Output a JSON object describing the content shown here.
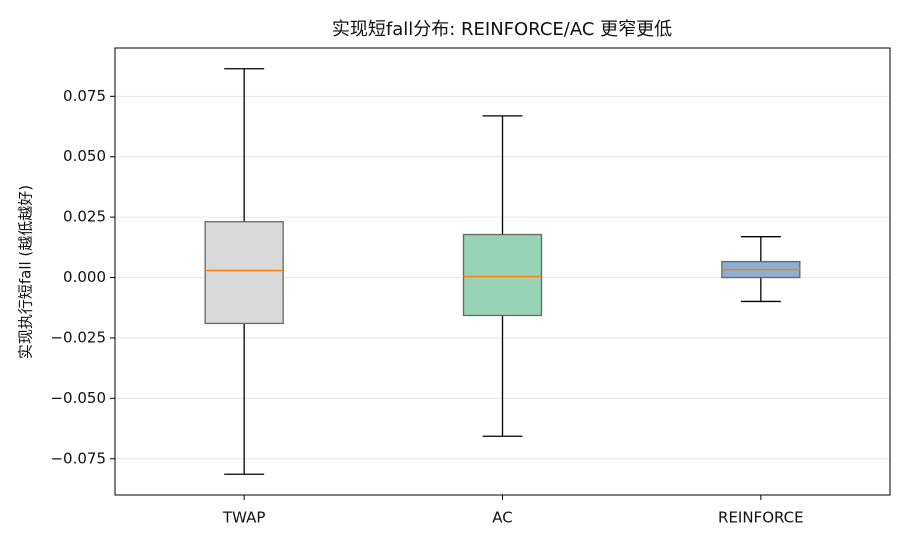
{
  "chart_data": {
    "type": "box",
    "title": "实现短fall分布: REINFORCE/AC 更窄更低",
    "y_label": "实现执行短fall (越低越好)",
    "categories": [
      "TWAP",
      "AC",
      "REINFORCE"
    ],
    "boxes": [
      {
        "low": -0.0814,
        "q1": -0.019,
        "median": 0.0029,
        "q3": 0.0231,
        "high": 0.0864,
        "color": "#d9d9d9"
      },
      {
        "low": -0.0657,
        "q1": -0.0157,
        "median": 0.0004,
        "q3": 0.0178,
        "high": 0.0669,
        "color": "#99d3b5"
      },
      {
        "low": -0.0099,
        "q1": 0.0,
        "median": 0.0033,
        "q3": 0.0066,
        "high": 0.0169,
        "color": "#8eaed6"
      }
    ],
    "median_color": "#ff7f0e",
    "ylim": [
      -0.09,
      0.095
    ],
    "yticks": [
      {
        "value": -0.075,
        "label": "−0.075"
      },
      {
        "value": -0.05,
        "label": "−0.050"
      },
      {
        "value": -0.025,
        "label": "−0.025"
      },
      {
        "value": 0,
        "label": "0.000"
      },
      {
        "value": 0.025,
        "label": "0.025"
      },
      {
        "value": 0.05,
        "label": "0.050"
      },
      {
        "value": 0.075,
        "label": "0.075"
      }
    ],
    "grid": true
  }
}
